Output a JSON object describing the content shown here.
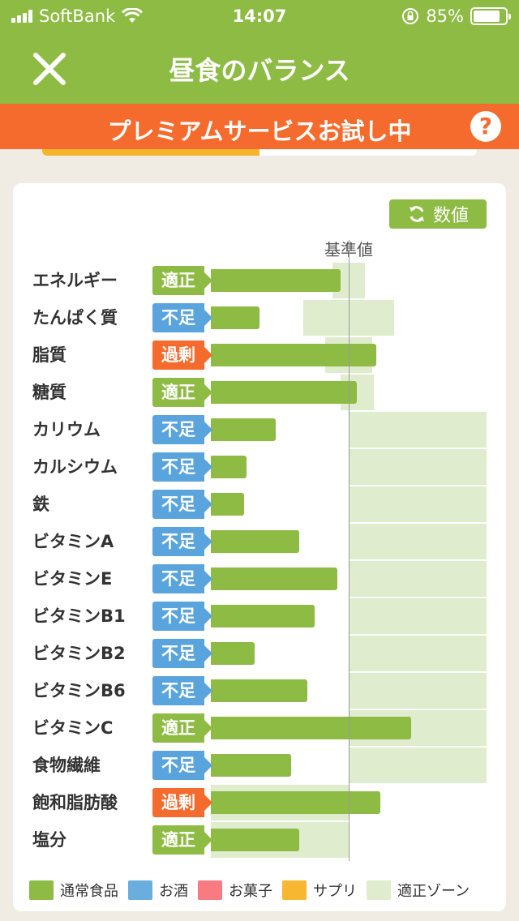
{
  "status": {
    "carrier": "SoftBank",
    "time": "14:07",
    "battery": "85%",
    "battery_level": 0.85
  },
  "nav": {
    "title": "昼食のバランス",
    "close_icon": "close-icon"
  },
  "banner": {
    "text": "プレミアムサービスお試し中",
    "help": "?"
  },
  "card": {
    "toggle_label": "数値",
    "reference_label": "基準値"
  },
  "colors": {
    "primary": "#8dbb44",
    "zone": "#dfeccd",
    "adequate": "#8dbb44",
    "deficient": "#5aa4de",
    "excess": "#f56b2e",
    "banner": "#f56b2e"
  },
  "rows": [
    {
      "label": "エネルギー",
      "status": "適正",
      "kind": "adequate",
      "value": 94,
      "zone": [
        88,
        112
      ]
    },
    {
      "label": "たんぱく質",
      "status": "不足",
      "kind": "deficient",
      "value": 35,
      "zone": [
        67,
        133
      ]
    },
    {
      "label": "脂質",
      "status": "過剰",
      "kind": "excess",
      "value": 120,
      "zone": [
        83,
        117
      ]
    },
    {
      "label": "糖質",
      "status": "適正",
      "kind": "adequate",
      "value": 106,
      "zone": [
        94,
        118
      ]
    },
    {
      "label": "カリウム",
      "status": "不足",
      "kind": "deficient",
      "value": 47,
      "zone": [
        100,
        200
      ]
    },
    {
      "label": "カルシウム",
      "status": "不足",
      "kind": "deficient",
      "value": 26,
      "zone": [
        100,
        200
      ]
    },
    {
      "label": "鉄",
      "status": "不足",
      "kind": "deficient",
      "value": 24,
      "zone": [
        100,
        200
      ]
    },
    {
      "label": "ビタミンA",
      "status": "不足",
      "kind": "deficient",
      "value": 64,
      "zone": [
        100,
        200
      ]
    },
    {
      "label": "ビタミンE",
      "status": "不足",
      "kind": "deficient",
      "value": 92,
      "zone": [
        100,
        200
      ]
    },
    {
      "label": "ビタミンB1",
      "status": "不足",
      "kind": "deficient",
      "value": 75,
      "zone": [
        100,
        200
      ]
    },
    {
      "label": "ビタミンB2",
      "status": "不足",
      "kind": "deficient",
      "value": 32,
      "zone": [
        100,
        200
      ]
    },
    {
      "label": "ビタミンB6",
      "status": "不足",
      "kind": "deficient",
      "value": 70,
      "zone": [
        100,
        200
      ]
    },
    {
      "label": "ビタミンC",
      "status": "適正",
      "kind": "adequate",
      "value": 145,
      "zone": [
        100,
        200
      ]
    },
    {
      "label": "食物繊維",
      "status": "不足",
      "kind": "deficient",
      "value": 58,
      "zone": [
        100,
        200
      ]
    },
    {
      "label": "飽和脂肪酸",
      "status": "過剰",
      "kind": "excess",
      "value": 123,
      "zone": [
        0,
        100
      ]
    },
    {
      "label": "塩分",
      "status": "適正",
      "kind": "adequate",
      "value": 64,
      "zone": [
        0,
        100
      ]
    }
  ],
  "legend": [
    {
      "label": "通常食品",
      "color": "#8dbb44"
    },
    {
      "label": "お酒",
      "color": "#6aaee0"
    },
    {
      "label": "お菓子",
      "color": "#f77b80"
    },
    {
      "label": "サプリ",
      "color": "#f7b731"
    },
    {
      "label": "適正ゾーン",
      "color": "#dfeccd"
    }
  ]
}
